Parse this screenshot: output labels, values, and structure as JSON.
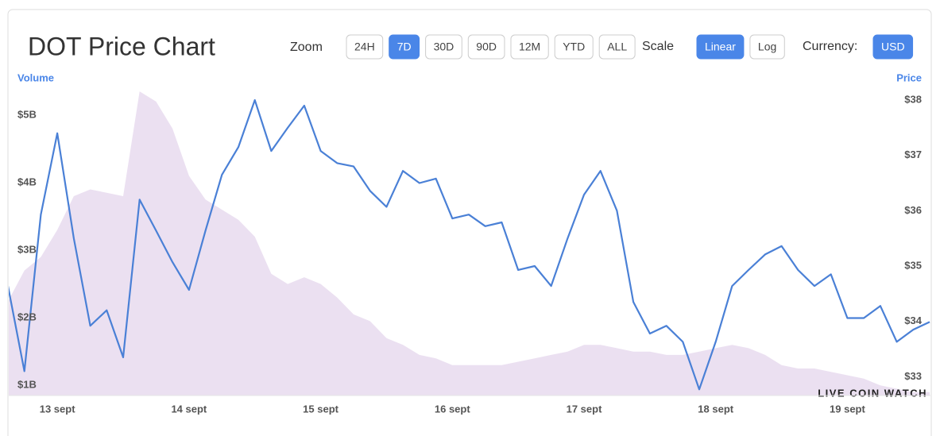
{
  "controls": {
    "zoom_label": "Zoom",
    "zoom_options": [
      "24H",
      "7D",
      "30D",
      "90D",
      "12M",
      "YTD",
      "ALL"
    ],
    "zoom_active": 1,
    "scale_label": "Scale",
    "scale_options": [
      "Linear",
      "Log"
    ],
    "scale_active": 0,
    "currency_label": "Currency:",
    "currency_options": [
      "USD"
    ],
    "currency_active": 0
  },
  "brand": "LIVE COIN WATCH",
  "chart_data": {
    "type": "line",
    "title": "DOT Price Chart",
    "y_label": "Volume",
    "y2_label": "Price",
    "categories": [
      null,
      null,
      null,
      "13 sept",
      null,
      null,
      null,
      null,
      null,
      null,
      null,
      "14 sept",
      null,
      null,
      null,
      null,
      null,
      null,
      null,
      "15 sept",
      null,
      null,
      null,
      null,
      null,
      null,
      null,
      "16 sept",
      null,
      null,
      null,
      null,
      null,
      null,
      null,
      "17 sept",
      null,
      null,
      null,
      null,
      null,
      null,
      null,
      "18 sept",
      null,
      null,
      null,
      null,
      null,
      null,
      null,
      "19 sept",
      null,
      null,
      null,
      null,
      null
    ],
    "series": [
      {
        "name": "Volume",
        "kind": "area",
        "color": "#ebe0f1",
        "axis": "y",
        "values": [
          2.24,
          2.7,
          2.9,
          3.3,
          3.8,
          3.9,
          3.85,
          3.8,
          5.35,
          5.2,
          4.8,
          4.1,
          3.75,
          3.6,
          3.45,
          3.2,
          2.65,
          2.5,
          2.6,
          2.5,
          2.3,
          2.05,
          1.95,
          1.7,
          1.6,
          1.45,
          1.4,
          1.3,
          1.3,
          1.3,
          1.3,
          1.35,
          1.4,
          1.45,
          1.5,
          1.6,
          1.6,
          1.55,
          1.5,
          1.5,
          1.45,
          1.45,
          1.5,
          1.55,
          1.6,
          1.55,
          1.45,
          1.3,
          1.25,
          1.25,
          1.2,
          1.15,
          1.1,
          1.0,
          0.95,
          0.9,
          0.9
        ]
      },
      {
        "name": "Price",
        "kind": "line",
        "color": "#4a80d6",
        "axis": "y2",
        "values": [
          34.64,
          33.1,
          35.93,
          37.4,
          35.5,
          33.92,
          34.2,
          33.35,
          36.2,
          35.64,
          35.07,
          34.57,
          35.64,
          36.65,
          37.15,
          38.0,
          37.08,
          37.5,
          37.9,
          37.08,
          36.86,
          36.8,
          36.36,
          36.07,
          36.72,
          36.5,
          36.58,
          35.86,
          35.93,
          35.72,
          35.79,
          34.93,
          35.0,
          34.64,
          35.5,
          36.29,
          36.72,
          36.0,
          34.35,
          33.78,
          33.92,
          33.63,
          32.77,
          33.63,
          34.64,
          34.93,
          35.21,
          35.36,
          34.93,
          34.64,
          34.85,
          34.06,
          34.06,
          34.28,
          33.63,
          33.85,
          33.99
        ]
      }
    ],
    "ylim": [
      0.85,
      5.41
    ],
    "yticks": [
      {
        "value": 1,
        "label": "$1B"
      },
      {
        "value": 2,
        "label": "$2B"
      },
      {
        "value": 3,
        "label": "$3B"
      },
      {
        "value": 4,
        "label": "$4B"
      },
      {
        "value": 5,
        "label": "$5B"
      }
    ],
    "y2lim": [
      32.66,
      38.23
    ],
    "y2ticks": [
      {
        "value": 33,
        "label": "$33"
      },
      {
        "value": 34,
        "label": "$34"
      },
      {
        "value": 35,
        "label": "$35"
      },
      {
        "value": 36,
        "label": "$36"
      },
      {
        "value": 37,
        "label": "$37"
      },
      {
        "value": 38,
        "label": "$38"
      }
    ],
    "grid": false
  }
}
